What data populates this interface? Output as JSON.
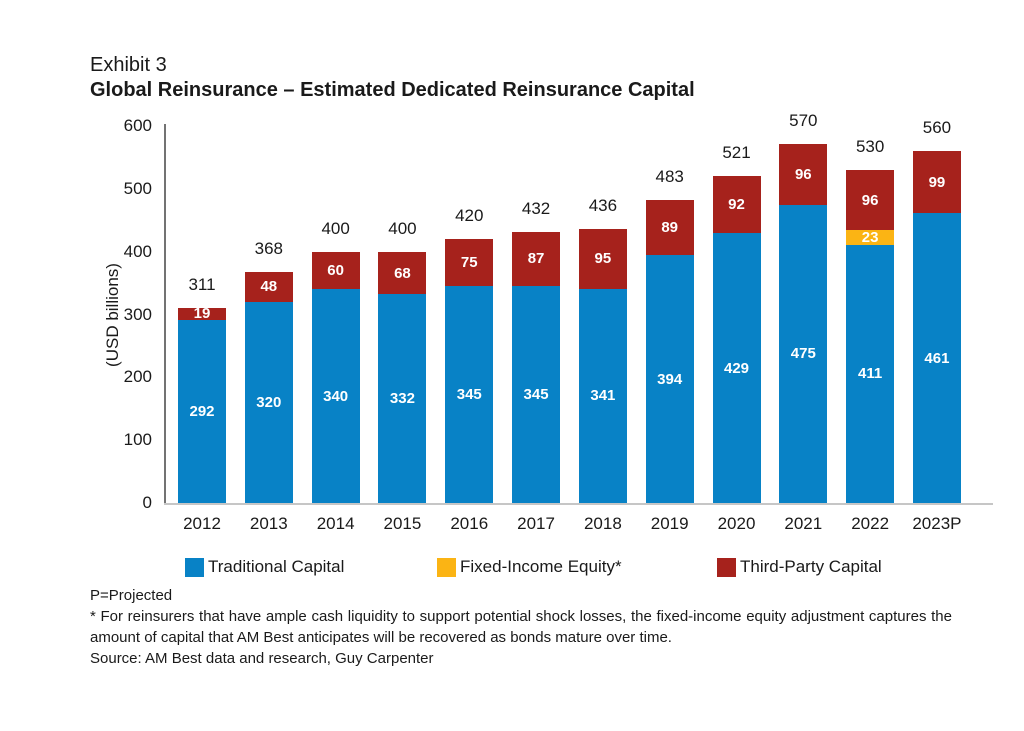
{
  "header": {
    "exhibit_label": "Exhibit 3"
  },
  "chart_data": {
    "type": "bar",
    "stacked": true,
    "title": "Global Reinsurance – Estimated Dedicated Reinsurance Capital",
    "ylabel": "(USD billions)",
    "ylim": [
      0,
      600
    ],
    "yticks": [
      0,
      100,
      200,
      300,
      400,
      500,
      600
    ],
    "grid": false,
    "legend_position": "bottom",
    "categories": [
      "2012",
      "2013",
      "2014",
      "2015",
      "2016",
      "2017",
      "2018",
      "2019",
      "2020",
      "2021",
      "2022",
      "2023P"
    ],
    "series": [
      {
        "name": "Traditional Capital",
        "color": "#0882C6",
        "values": [
          292,
          320,
          340,
          332,
          345,
          345,
          341,
          394,
          429,
          475,
          411,
          461
        ]
      },
      {
        "name": "Fixed-Income Equity*",
        "color": "#FBB414",
        "values": [
          null,
          null,
          null,
          null,
          null,
          null,
          null,
          null,
          null,
          null,
          23,
          null
        ]
      },
      {
        "name": "Third-Party Capital",
        "color": "#A6221C",
        "values": [
          19,
          48,
          60,
          68,
          75,
          87,
          95,
          89,
          92,
          96,
          96,
          99
        ]
      }
    ],
    "totals": [
      311,
      368,
      400,
      400,
      420,
      432,
      436,
      483,
      521,
      570,
      530,
      560
    ]
  },
  "footnotes": {
    "projected": "P=Projected",
    "asterisk": "* For reinsurers that have ample cash liquidity to support potential shock losses, the fixed-income equity adjustment captures the amount of capital that AM Best anticipates will be recovered as bonds mature over time.",
    "source": "Source: AM Best data and research, Guy Carpenter"
  }
}
